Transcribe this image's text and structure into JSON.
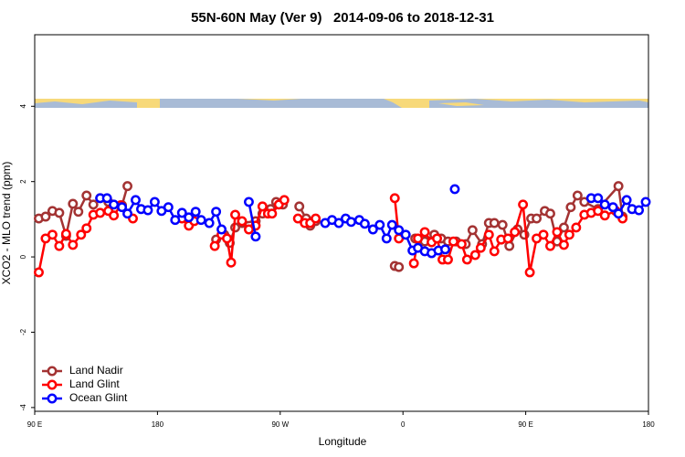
{
  "chart_data": {
    "type": "line",
    "title": "55N-60N May (Ver 9)   2014-09-06 to 2018-12-31",
    "xlabel": "Longitude",
    "ylabel": "XCO2 - MLO trend (ppm)",
    "xlim": [
      -270,
      180
    ],
    "xticks": [
      {
        "value": -270,
        "label": "90 E"
      },
      {
        "value": -180,
        "label": "180"
      },
      {
        "value": -90,
        "label": "90 W"
      },
      0,
      {
        "value": 90,
        "label": "90 E"
      },
      180
    ],
    "ylim": [
      -4.1,
      5.9
    ],
    "yticks": [
      -4,
      -2,
      0,
      2,
      4
    ],
    "legend": "bottom-left",
    "series": [
      {
        "name": "Land Nadir",
        "color": "#a33333",
        "x": [
          -267,
          -262,
          -257,
          -252,
          -247,
          -242,
          -238,
          -232,
          -227,
          -222,
          -216,
          -206,
          -202,
          null,
          -137,
          -131,
          -127,
          -123,
          -118,
          -108,
          -103,
          -97,
          -93,
          -88,
          null,
          -76,
          -71,
          -68,
          -64,
          null,
          -6,
          -3,
          null,
          9,
          16,
          23,
          28,
          33,
          39,
          46,
          51,
          58,
          63,
          67,
          73,
          78,
          84,
          89,
          94,
          98,
          104,
          108,
          113,
          118,
          123,
          128,
          133,
          143,
          158,
          161
        ],
        "values": [
          1.02,
          1.07,
          1.22,
          1.17,
          0.56,
          1.41,
          1.2,
          1.63,
          1.39,
          1.56,
          1.46,
          1.37,
          1.88,
          null,
          0.46,
          0.59,
          0.37,
          0.78,
          0.9,
          0.95,
          1.15,
          1.27,
          1.46,
          1.39,
          null,
          1.34,
          1.02,
          0.83,
          0.95,
          null,
          -0.24,
          -0.27,
          null,
          0.49,
          0.41,
          0.59,
          0.49,
          0.41,
          0.41,
          0.34,
          0.71,
          0.34,
          0.9,
          0.9,
          0.85,
          0.29,
          0.73,
          0.59,
          1.02,
          1.02,
          1.22,
          1.15,
          0.41,
          0.78,
          1.32,
          1.63,
          1.46,
          1.27,
          1.88,
          1.07
        ]
      },
      {
        "name": "Land Glint",
        "color": "#ff0000",
        "x": [
          -267,
          -262,
          -257,
          -252,
          -247,
          -242,
          -236,
          -232,
          -227,
          -222,
          -216,
          -212,
          -207,
          -198,
          null,
          -162,
          -157,
          -153,
          null,
          -138,
          -133,
          -129,
          -126,
          -123,
          -118,
          -113,
          -108,
          -103,
          -99,
          -96,
          -91,
          -87,
          null,
          -77,
          -72,
          -68,
          -64,
          null,
          -6,
          -3,
          null,
          8,
          11,
          16,
          21,
          25,
          29,
          33,
          37,
          43,
          47,
          53,
          57,
          63,
          67,
          72,
          77,
          82,
          88,
          93,
          98,
          103,
          108,
          113,
          118,
          122,
          127,
          133,
          138,
          143,
          148,
          156,
          161
        ],
        "values": [
          -0.41,
          0.49,
          0.59,
          0.29,
          0.61,
          0.32,
          0.59,
          0.76,
          1.12,
          1.17,
          1.22,
          1.1,
          1.37,
          1.02,
          null,
          1.02,
          0.83,
          0.95,
          null,
          0.29,
          0.59,
          0.49,
          -0.15,
          1.12,
          0.95,
          0.73,
          0.83,
          1.34,
          1.15,
          1.15,
          1.39,
          1.51,
          null,
          1.02,
          0.9,
          0.9,
          1.02,
          null,
          1.56,
          0.49,
          null,
          -0.17,
          0.49,
          0.66,
          0.39,
          0.49,
          -0.07,
          -0.07,
          0.41,
          0.34,
          -0.07,
          0.05,
          0.24,
          0.59,
          0.15,
          0.46,
          0.49,
          0.66,
          1.39,
          -0.41,
          0.49,
          0.59,
          0.29,
          0.66,
          0.32,
          0.59,
          0.78,
          1.12,
          1.17,
          1.22,
          1.1,
          1.22,
          1.02
        ]
      },
      {
        "name": "Ocean Glint",
        "color": "#0000ff",
        "x": [
          -222,
          -217,
          -212,
          -206,
          -202,
          -196,
          -192,
          -187,
          -182,
          -177,
          -172,
          -167,
          -162,
          -157,
          -152,
          -148,
          -142,
          -137,
          -133,
          null,
          -113,
          -108,
          null,
          -57,
          -52,
          -47,
          -42,
          -38,
          -32,
          -28,
          -22,
          -17,
          -12,
          -8,
          -3,
          2,
          7,
          11,
          16,
          21,
          26,
          31,
          null,
          38,
          null,
          138,
          143,
          148,
          154,
          158,
          164,
          168,
          173,
          178
        ],
        "values": [
          1.56,
          1.56,
          1.39,
          1.32,
          1.15,
          1.51,
          1.27,
          1.24,
          1.46,
          1.22,
          1.32,
          0.98,
          1.17,
          1.05,
          1.2,
          0.98,
          0.9,
          1.2,
          0.73,
          null,
          1.46,
          0.54,
          null,
          0.9,
          0.98,
          0.9,
          1.02,
          0.93,
          0.98,
          0.88,
          0.73,
          0.85,
          0.49,
          0.85,
          0.71,
          0.59,
          0.17,
          0.24,
          0.15,
          0.1,
          0.17,
          0.2,
          null,
          1.8,
          null,
          1.56,
          1.56,
          1.39,
          1.32,
          1.15,
          1.51,
          1.27,
          1.24,
          1.46
        ]
      }
    ]
  }
}
